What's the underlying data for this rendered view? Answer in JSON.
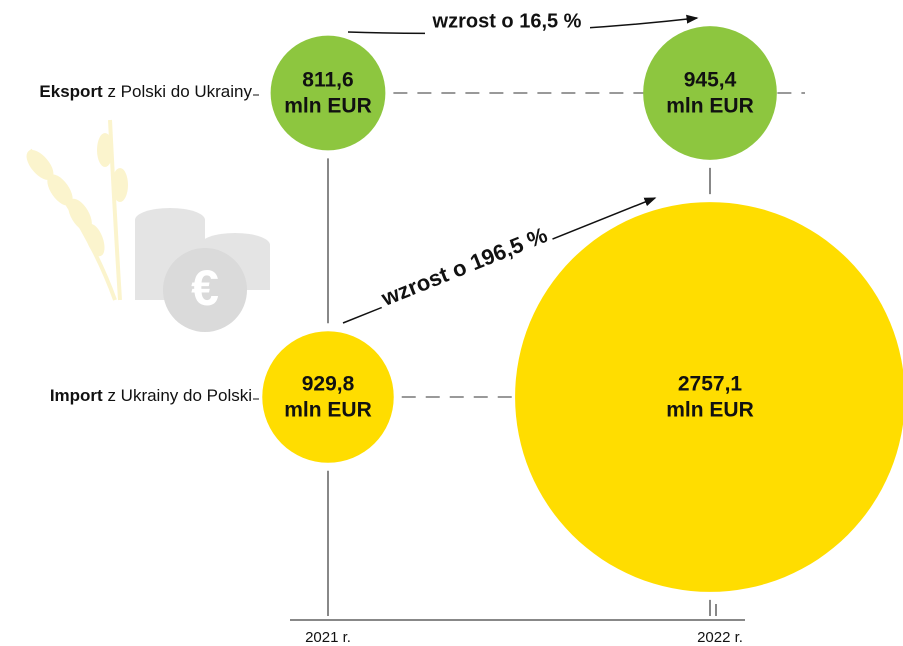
{
  "chart_data": {
    "type": "bubble",
    "categories": [
      "2021 r.",
      "2022 r."
    ],
    "unit": "mln EUR",
    "series": [
      {
        "name": "Eksport z Polski do Ukrainy",
        "color": "#8dc63f",
        "values": [
          811.6,
          945.4
        ],
        "value_labels": [
          "811,6",
          "945,4"
        ]
      },
      {
        "name": "Import z Ukrainy do Polski",
        "color": "#ffdd00",
        "values": [
          929.8,
          2757.1
        ],
        "value_labels": [
          "929,8",
          "2757,1"
        ]
      }
    ],
    "annotations": [
      "wzrost o 16,5 %",
      "wzrost o 196,5 %"
    ]
  }
}
